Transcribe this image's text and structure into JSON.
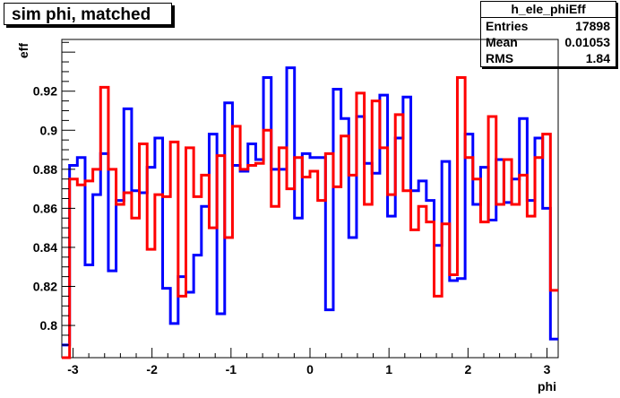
{
  "title": "sim phi, matched",
  "stats": {
    "name": "h_ele_phiEff",
    "rows": [
      {
        "key": "Entries",
        "value": "17898"
      },
      {
        "key": "Mean",
        "value": "0.01053"
      },
      {
        "key": "RMS",
        "value": "1.84"
      }
    ]
  },
  "chart_data": {
    "type": "line",
    "style": "step-histogram",
    "xlabel": "phi",
    "ylabel": "eff",
    "xlim": [
      -3.1416,
      3.1416
    ],
    "ylim": [
      0.7835,
      0.9465
    ],
    "xticks": [
      -3,
      -2,
      -1,
      0,
      1,
      2,
      3
    ],
    "xtick_labels": [
      "-3",
      "-2",
      "-1",
      "0",
      "1",
      "2",
      "3"
    ],
    "yticks": [
      0.8,
      0.82,
      0.84,
      0.86,
      0.88,
      0.9,
      0.92
    ],
    "ytick_labels": [
      "0.8",
      "0.82",
      "0.84",
      "0.86",
      "0.88",
      "0.9",
      "0.92"
    ],
    "grid": false,
    "series": [
      {
        "color": "#0000ff",
        "values": [
          0.79,
          0.882,
          0.886,
          0.831,
          0.867,
          0.888,
          0.828,
          0.864,
          0.911,
          0.869,
          0.868,
          0.881,
          0.896,
          0.819,
          0.801,
          0.825,
          0.817,
          0.836,
          0.861,
          0.898,
          0.806,
          0.914,
          0.882,
          0.879,
          0.893,
          0.885,
          0.927,
          0.88,
          0.88,
          0.932,
          0.855,
          0.888,
          0.886,
          0.886,
          0.808,
          0.921,
          0.906,
          0.845,
          0.907,
          0.883,
          0.878,
          0.918,
          0.856,
          0.896,
          0.917,
          0.869,
          0.874,
          0.864,
          0.841,
          0.884,
          0.823,
          0.824,
          0.898,
          0.862,
          0.881,
          0.854,
          0.885,
          0.863,
          0.875,
          0.906,
          0.864,
          0.896,
          0.86,
          0.793
        ]
      },
      {
        "color": "#ff0000",
        "values": [
          0.783,
          0.875,
          0.872,
          0.874,
          0.88,
          0.922,
          0.88,
          0.862,
          0.868,
          0.855,
          0.893,
          0.839,
          0.867,
          0.866,
          0.894,
          0.815,
          0.891,
          0.866,
          0.877,
          0.85,
          0.887,
          0.845,
          0.902,
          0.88,
          0.882,
          0.883,
          0.9,
          0.861,
          0.891,
          0.87,
          0.886,
          0.876,
          0.879,
          0.864,
          0.888,
          0.871,
          0.897,
          0.877,
          0.919,
          0.862,
          0.915,
          0.891,
          0.867,
          0.908,
          0.869,
          0.849,
          0.861,
          0.853,
          0.815,
          0.852,
          0.826,
          0.927,
          0.886,
          0.875,
          0.853,
          0.907,
          0.862,
          0.885,
          0.862,
          0.877,
          0.856,
          0.886,
          0.898,
          0.818
        ]
      }
    ]
  }
}
